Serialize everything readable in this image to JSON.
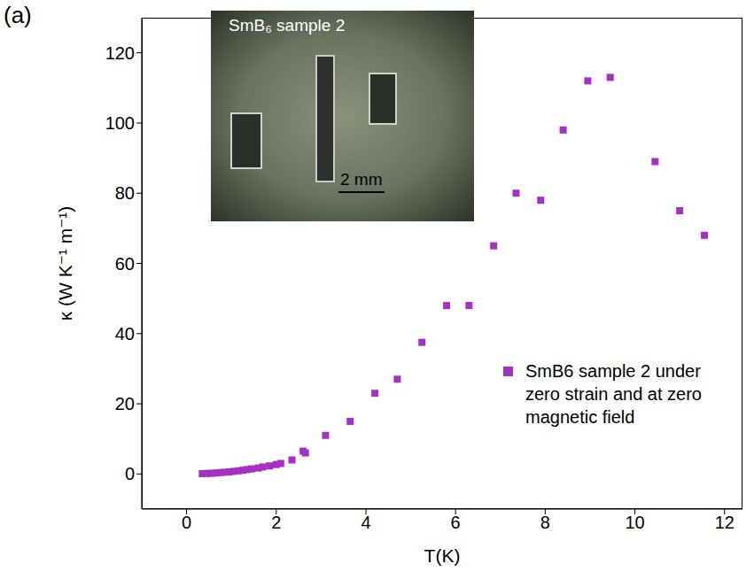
{
  "chart_data": {
    "type": "scatter",
    "panel_label": "(a)",
    "xlabel": "T(K)",
    "ylabel": "κ (W K⁻¹ m⁻¹)",
    "inset": {
      "label": "SmB₆ sample 2",
      "scale_bar": "2 mm"
    },
    "x": [
      0.35,
      0.45,
      0.55,
      0.65,
      0.75,
      0.85,
      0.95,
      1.05,
      1.15,
      1.25,
      1.35,
      1.45,
      1.6,
      1.7,
      1.85,
      2.0,
      2.1,
      2.35,
      2.6,
      2.65,
      3.1,
      3.65,
      4.2,
      4.7,
      5.25,
      5.8,
      6.3,
      6.85,
      7.35,
      7.9,
      8.4,
      8.95,
      9.45,
      10.45,
      11.0,
      11.55
    ],
    "series": [
      {
        "name": "SmB6 sample 2 under zero strain and at zero magnetic field",
        "color": "#a62fc4",
        "marker": "square",
        "values": [
          0.1,
          0.15,
          0.2,
          0.3,
          0.4,
          0.5,
          0.6,
          0.75,
          0.9,
          1.05,
          1.25,
          1.45,
          1.7,
          2.0,
          2.3,
          2.7,
          3.0,
          4.0,
          6.5,
          6.0,
          11,
          15,
          23,
          27,
          37.5,
          48,
          48,
          65,
          80,
          78,
          98,
          112,
          113,
          89,
          75,
          68
        ]
      }
    ],
    "xlim": [
      -1,
      12.4
    ],
    "xticks": [
      0,
      2,
      4,
      6,
      8,
      10,
      12
    ],
    "ylim": [
      -10,
      130
    ],
    "yticks": [
      0,
      20,
      40,
      60,
      80,
      100,
      120
    ],
    "grid": false,
    "legend": "right"
  }
}
